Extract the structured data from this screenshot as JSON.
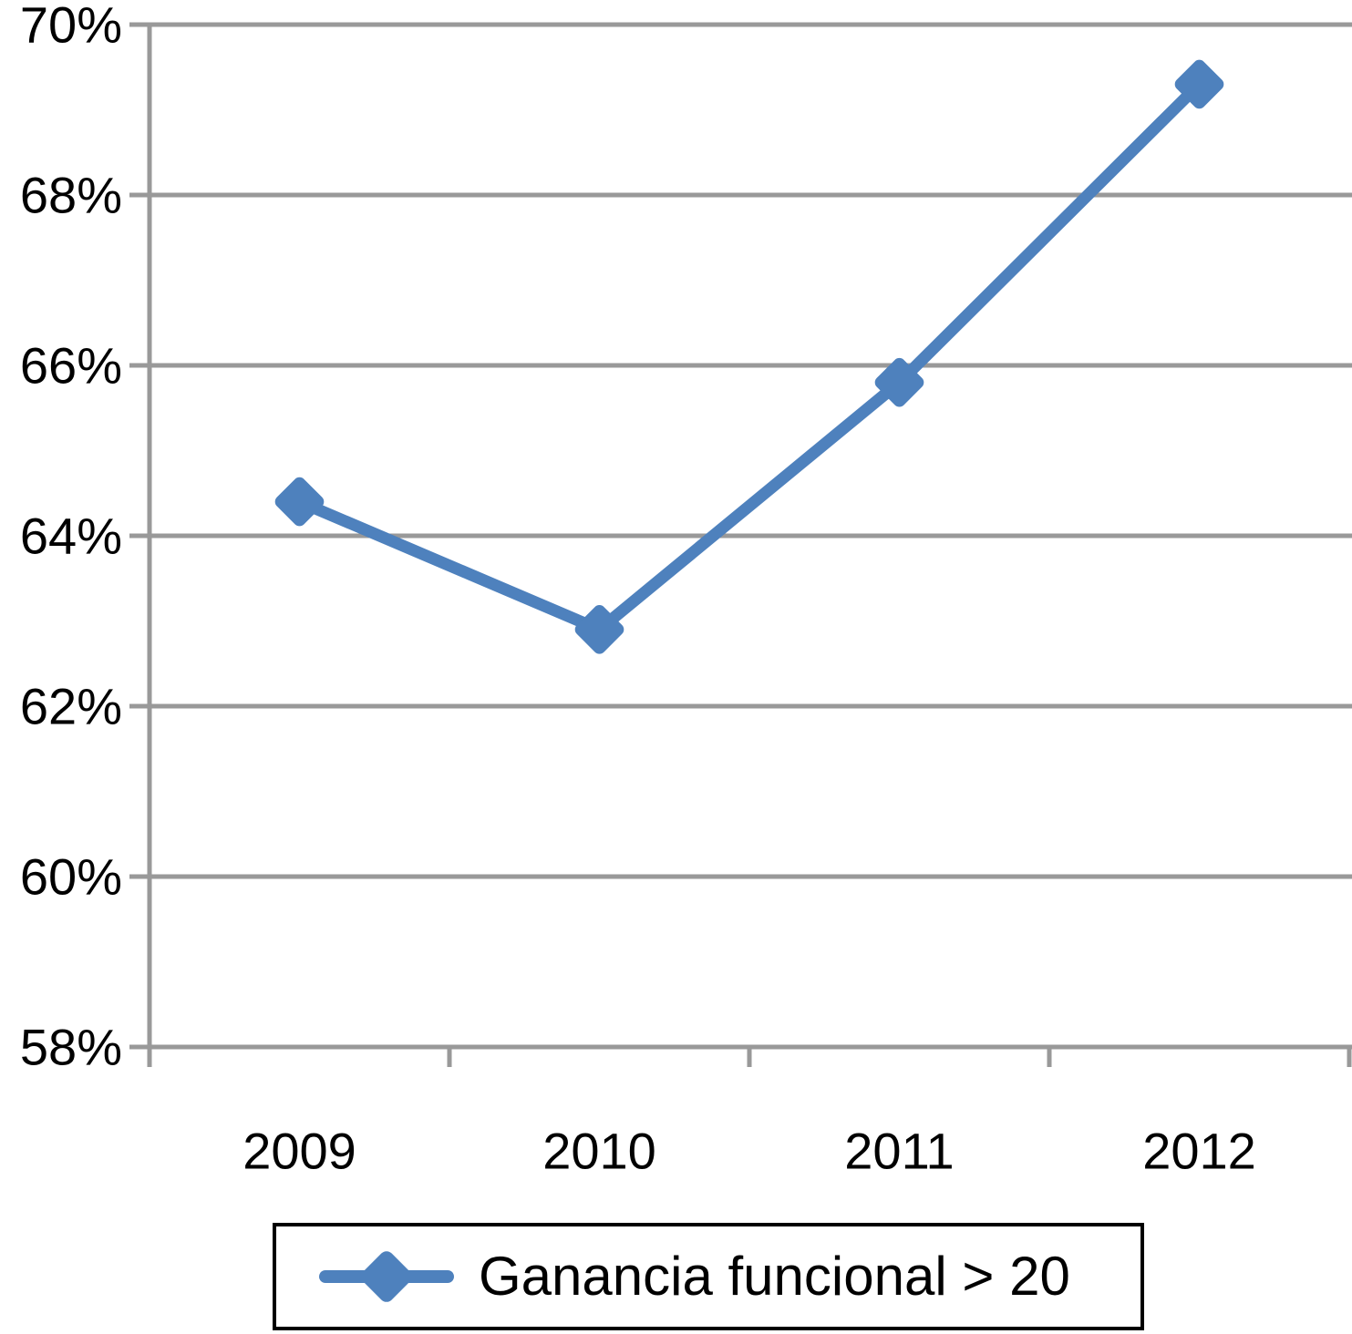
{
  "chart_data": {
    "type": "line",
    "categories": [
      "2009",
      "2010",
      "2011",
      "2012"
    ],
    "series": [
      {
        "name": "Ganancia funcional > 20",
        "values": [
          64.4,
          62.9,
          65.8,
          69.3
        ],
        "marker": "diamond"
      }
    ],
    "title": "",
    "xlabel": "",
    "ylabel": "",
    "ylim": [
      58,
      70
    ],
    "ytick_step": 2,
    "ytick_labels": [
      "58%",
      "60%",
      "62%",
      "64%",
      "66%",
      "68%",
      "70%"
    ],
    "grid": true,
    "legend_position": "bottom",
    "colors": {
      "series": "#4E81BD",
      "grid": "#999999",
      "axis": "#999999",
      "text": "#000000",
      "legend_border": "#000000",
      "background": "#FFFFFF"
    }
  }
}
